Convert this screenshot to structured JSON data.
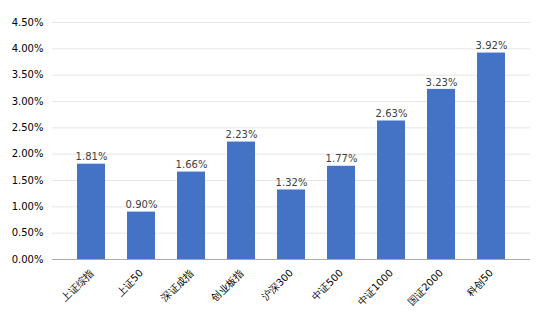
{
  "chart_data": {
    "type": "bar",
    "categories": [
      "上证综指",
      "上证50",
      "深证成指",
      "创业板指",
      "沪深300",
      "中证500",
      "中证1000",
      "国证2000",
      "科创50"
    ],
    "values": [
      0.0181,
      0.009,
      0.0166,
      0.0223,
      0.0132,
      0.0177,
      0.0263,
      0.0323,
      0.0392
    ],
    "value_labels": [
      "1.81%",
      "0.90%",
      "1.66%",
      "2.23%",
      "1.32%",
      "1.77%",
      "2.63%",
      "3.23%",
      "3.92%"
    ],
    "data_labels": true,
    "color": "#4472C4",
    "ylim": [
      0,
      0.045
    ],
    "yticks": [
      {
        "value": 0.0,
        "label": "0.00%"
      },
      {
        "value": 0.005,
        "label": "0.50%"
      },
      {
        "value": 0.01,
        "label": "1.00%"
      },
      {
        "value": 0.015,
        "label": "1.50%"
      },
      {
        "value": 0.02,
        "label": "2.00%"
      },
      {
        "value": 0.025,
        "label": "2.50%"
      },
      {
        "value": 0.03,
        "label": "3.00%"
      },
      {
        "value": 0.035,
        "label": "3.50%"
      },
      {
        "value": 0.04,
        "label": "4.00%"
      },
      {
        "value": 0.045,
        "label": "4.50%"
      }
    ],
    "grid": true
  }
}
